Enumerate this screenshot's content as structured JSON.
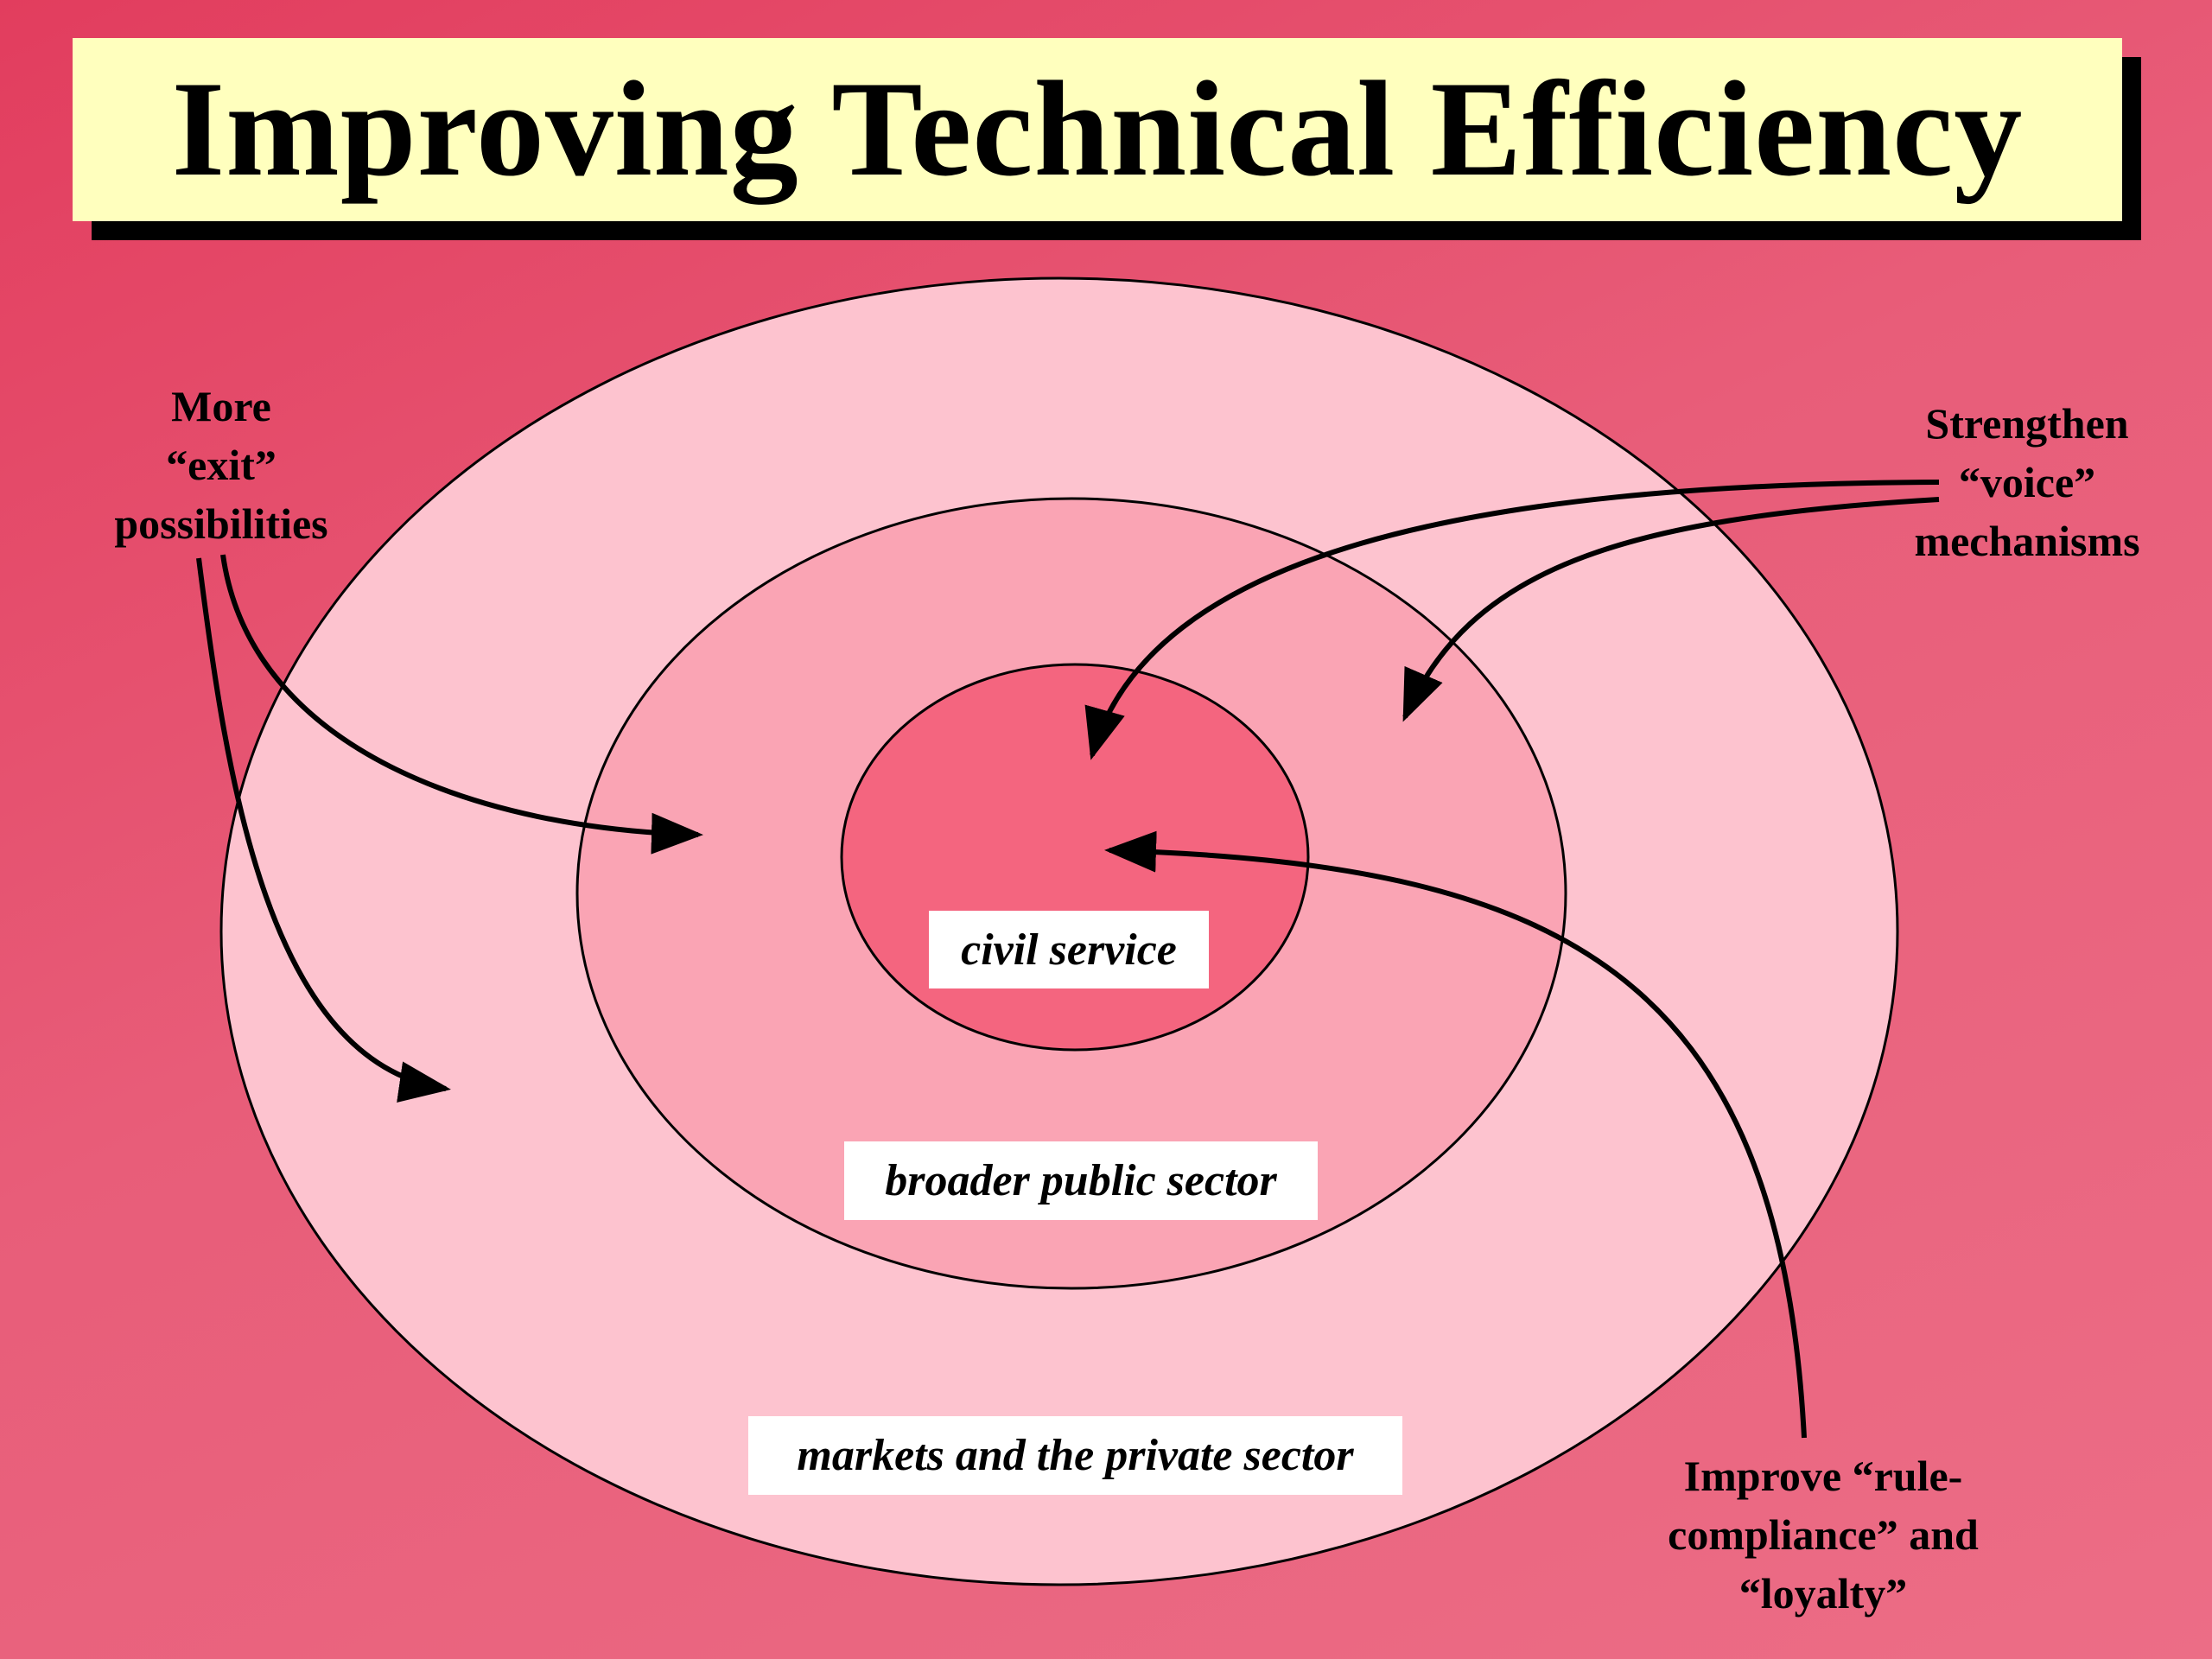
{
  "title": "Improving Technical Efficiency",
  "rings": {
    "inner": "civil service",
    "middle": "broader public sector",
    "outer": "markets and the private sector"
  },
  "annotations": {
    "exit": [
      "More",
      "“exit”",
      "possibilities"
    ],
    "voice": [
      "Strengthen",
      "“voice”",
      "mechanisms"
    ],
    "compliance": [
      "Improve “rule-",
      "compliance” and",
      "“loyalty”"
    ]
  },
  "colors": {
    "background": "#e5506e",
    "title_fill": "#ffffbe",
    "outer_ring": "#fdc3cf",
    "middle_ring": "#faa4b4",
    "inner_ring": "#f4657f",
    "label_box": "#ffffff"
  }
}
